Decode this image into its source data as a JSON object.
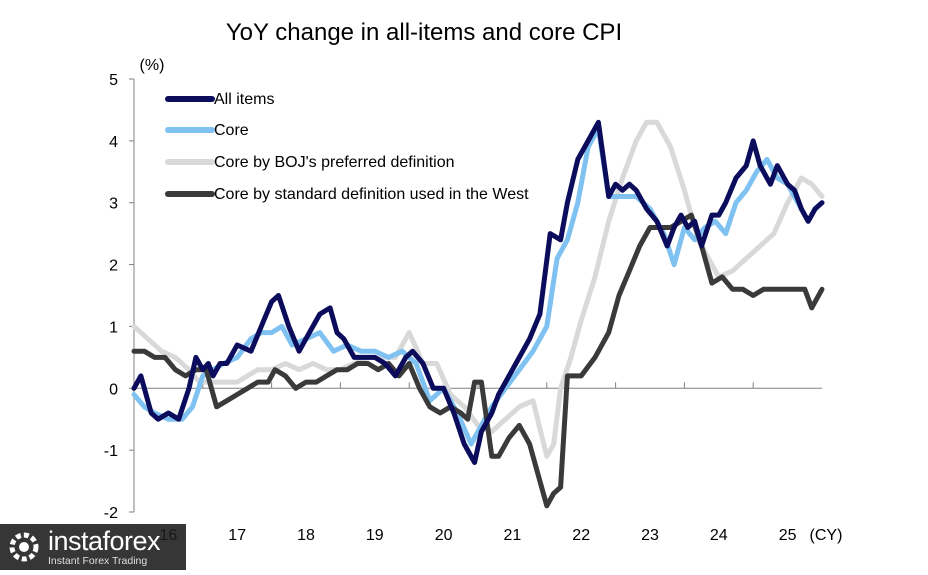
{
  "chart_data": {
    "type": "line",
    "title": "YoY change in all-items and core CPI",
    "ylabel": "(%)",
    "xlabel": "(CY)",
    "ylim": [
      -2,
      5
    ],
    "yticks": [
      -2,
      -1,
      0,
      1,
      2,
      3,
      4,
      5
    ],
    "ytick_labels": [
      "-2",
      "-1",
      "0",
      "1",
      "2",
      "3",
      "4",
      "5"
    ],
    "xlim": [
      2016.0,
      2026.0
    ],
    "xtick_positions": [
      2016.5,
      2017.5,
      2018.5,
      2019.5,
      2020.5,
      2021.5,
      2022.5,
      2023.5,
      2024.5,
      2025.5
    ],
    "xtick_labels": [
      "16",
      "17",
      "18",
      "19",
      "20",
      "21",
      "22",
      "23",
      "24",
      "25"
    ],
    "xgrid_years": [
      2017,
      2018,
      2019,
      2020,
      2021,
      2022,
      2023,
      2024,
      2025
    ],
    "legend_position": "top-left",
    "grid": false,
    "series": [
      {
        "name": "All items",
        "color": "#0c0c5c",
        "x": [
          2016.0,
          2016.1,
          2016.25,
          2016.35,
          2016.5,
          2016.65,
          2016.8,
          2016.9,
          2017.0,
          2017.08,
          2017.15,
          2017.25,
          2017.35,
          2017.5,
          2017.7,
          2017.85,
          2018.0,
          2018.1,
          2018.25,
          2018.4,
          2018.55,
          2018.7,
          2018.85,
          2018.95,
          2019.05,
          2019.2,
          2019.35,
          2019.5,
          2019.65,
          2019.8,
          2019.95,
          2020.05,
          2020.2,
          2020.35,
          2020.5,
          2020.65,
          2020.8,
          2020.95,
          2021.05,
          2021.2,
          2021.3,
          2021.45,
          2021.6,
          2021.75,
          2021.9,
          2022.05,
          2022.2,
          2022.3,
          2022.45,
          2022.6,
          2022.75,
          2022.9,
          2023.0,
          2023.1,
          2023.2,
          2023.3,
          2023.45,
          2023.6,
          2023.75,
          2023.85,
          2023.95,
          2024.05,
          2024.15,
          2024.25,
          2024.4,
          2024.5,
          2024.6,
          2024.75,
          2024.9,
          2025.0,
          2025.1,
          2025.25,
          2025.35,
          2025.5,
          2025.6,
          2025.7,
          2025.8,
          2025.9,
          2026.0
        ],
        "values": [
          0.0,
          0.2,
          -0.4,
          -0.5,
          -0.4,
          -0.5,
          0.0,
          0.5,
          0.3,
          0.4,
          0.2,
          0.4,
          0.4,
          0.7,
          0.6,
          1.0,
          1.4,
          1.5,
          1.0,
          0.6,
          0.9,
          1.2,
          1.3,
          0.9,
          0.8,
          0.5,
          0.5,
          0.5,
          0.4,
          0.2,
          0.5,
          0.6,
          0.4,
          0.0,
          0.0,
          -0.4,
          -0.9,
          -1.2,
          -0.7,
          -0.4,
          -0.1,
          0.2,
          0.5,
          0.8,
          1.2,
          2.5,
          2.4,
          3.0,
          3.7,
          4.0,
          4.3,
          3.1,
          3.3,
          3.2,
          3.3,
          3.2,
          2.9,
          2.7,
          2.3,
          2.6,
          2.8,
          2.6,
          2.7,
          2.3,
          2.8,
          2.8,
          3.0,
          3.4,
          3.6,
          4.0,
          3.6,
          3.3,
          3.6,
          3.3,
          3.2,
          2.9,
          2.7,
          2.9,
          3.0
        ]
      },
      {
        "name": "Core",
        "color": "#7fc2f1",
        "x": [
          2016.0,
          2016.15,
          2016.3,
          2016.5,
          2016.7,
          2016.85,
          2017.0,
          2017.15,
          2017.3,
          2017.5,
          2017.7,
          2017.85,
          2018.0,
          2018.15,
          2018.3,
          2018.5,
          2018.7,
          2018.9,
          2019.1,
          2019.3,
          2019.5,
          2019.7,
          2019.9,
          2020.1,
          2020.3,
          2020.5,
          2020.7,
          2020.9,
          2021.05,
          2021.2,
          2021.4,
          2021.6,
          2021.8,
          2022.0,
          2022.15,
          2022.3,
          2022.45,
          2022.6,
          2022.75,
          2022.9,
          2023.1,
          2023.3,
          2023.5,
          2023.7,
          2023.85,
          2024.0,
          2024.15,
          2024.3,
          2024.45,
          2024.6,
          2024.75,
          2024.9,
          2025.05,
          2025.2,
          2025.35,
          2025.5,
          2025.65,
          2025.8,
          2025.9,
          2026.0
        ],
        "values": [
          -0.1,
          -0.3,
          -0.4,
          -0.5,
          -0.5,
          -0.3,
          0.2,
          0.3,
          0.4,
          0.5,
          0.8,
          0.9,
          0.9,
          1.0,
          0.7,
          0.8,
          0.9,
          0.6,
          0.7,
          0.6,
          0.6,
          0.5,
          0.6,
          0.4,
          -0.2,
          0.0,
          -0.4,
          -0.9,
          -0.6,
          -0.3,
          0.0,
          0.3,
          0.6,
          1.0,
          2.1,
          2.4,
          3.0,
          3.9,
          4.2,
          3.1,
          3.1,
          3.1,
          2.9,
          2.5,
          2.0,
          2.6,
          2.4,
          2.6,
          2.7,
          2.5,
          3.0,
          3.2,
          3.5,
          3.7,
          3.4,
          3.3,
          3.0,
          2.7,
          2.9,
          3.0
        ]
      },
      {
        "name": "Core by BOJ's preferred definition",
        "color": "#d9d9d9",
        "x": [
          2016.0,
          2016.2,
          2016.4,
          2016.6,
          2016.8,
          2016.95,
          2017.2,
          2017.5,
          2017.8,
          2018.0,
          2018.2,
          2018.4,
          2018.6,
          2018.8,
          2019.0,
          2019.2,
          2019.4,
          2019.6,
          2019.8,
          2020.0,
          2020.2,
          2020.4,
          2020.6,
          2020.8,
          2021.0,
          2021.2,
          2021.4,
          2021.6,
          2021.8,
          2022.0,
          2022.1,
          2022.2,
          2022.35,
          2022.5,
          2022.7,
          2022.9,
          2023.1,
          2023.3,
          2023.45,
          2023.6,
          2023.8,
          2024.0,
          2024.2,
          2024.35,
          2024.5,
          2024.7,
          2024.9,
          2025.1,
          2025.3,
          2025.5,
          2025.7,
          2025.85,
          2026.0
        ],
        "values": [
          1.0,
          0.8,
          0.6,
          0.5,
          0.3,
          0.1,
          0.1,
          0.1,
          0.3,
          0.3,
          0.4,
          0.3,
          0.4,
          0.3,
          0.3,
          0.4,
          0.5,
          0.5,
          0.5,
          0.9,
          0.4,
          0.4,
          -0.1,
          -0.3,
          -0.6,
          -0.7,
          -0.5,
          -0.3,
          -0.2,
          -1.1,
          -0.9,
          0.0,
          0.5,
          1.1,
          1.8,
          2.7,
          3.4,
          4.0,
          4.3,
          4.3,
          3.9,
          3.2,
          2.4,
          2.1,
          1.8,
          1.9,
          2.1,
          2.3,
          2.5,
          3.0,
          3.4,
          3.3,
          3.1
        ]
      },
      {
        "name": "Core by standard definition used in the West",
        "color": "#3a3a3a",
        "x": [
          2016.0,
          2016.15,
          2016.3,
          2016.45,
          2016.6,
          2016.75,
          2016.9,
          2017.05,
          2017.2,
          2017.35,
          2017.5,
          2017.65,
          2017.8,
          2017.95,
          2018.05,
          2018.2,
          2018.35,
          2018.5,
          2018.65,
          2018.8,
          2018.95,
          2019.1,
          2019.25,
          2019.4,
          2019.55,
          2019.7,
          2019.85,
          2020.0,
          2020.15,
          2020.3,
          2020.45,
          2020.6,
          2020.75,
          2020.85,
          2020.95,
          2021.05,
          2021.2,
          2021.3,
          2021.45,
          2021.6,
          2021.75,
          2021.9,
          2022.0,
          2022.1,
          2022.2,
          2022.3,
          2022.5,
          2022.7,
          2022.9,
          2023.05,
          2023.2,
          2023.35,
          2023.5,
          2023.65,
          2023.8,
          2023.95,
          2024.1,
          2024.25,
          2024.4,
          2024.55,
          2024.7,
          2024.85,
          2025.0,
          2025.15,
          2025.3,
          2025.45,
          2025.6,
          2025.75,
          2025.85,
          2026.0
        ],
        "values": [
          0.6,
          0.6,
          0.5,
          0.5,
          0.3,
          0.2,
          0.3,
          0.3,
          -0.3,
          -0.2,
          -0.1,
          0.0,
          0.1,
          0.1,
          0.3,
          0.2,
          0.0,
          0.1,
          0.1,
          0.2,
          0.3,
          0.3,
          0.4,
          0.4,
          0.3,
          0.4,
          0.2,
          0.4,
          0.0,
          -0.3,
          -0.4,
          -0.3,
          -0.4,
          -0.5,
          0.1,
          0.1,
          -1.1,
          -1.1,
          -0.8,
          -0.6,
          -0.9,
          -1.5,
          -1.9,
          -1.7,
          -1.6,
          0.2,
          0.2,
          0.5,
          0.9,
          1.5,
          1.9,
          2.3,
          2.6,
          2.6,
          2.6,
          2.7,
          2.8,
          2.3,
          1.7,
          1.8,
          1.6,
          1.6,
          1.5,
          1.6,
          1.6,
          1.6,
          1.6,
          1.6,
          1.3,
          1.6
        ]
      }
    ]
  },
  "watermark": {
    "brand": "instaforex",
    "tagline": "Instant Forex Trading"
  }
}
